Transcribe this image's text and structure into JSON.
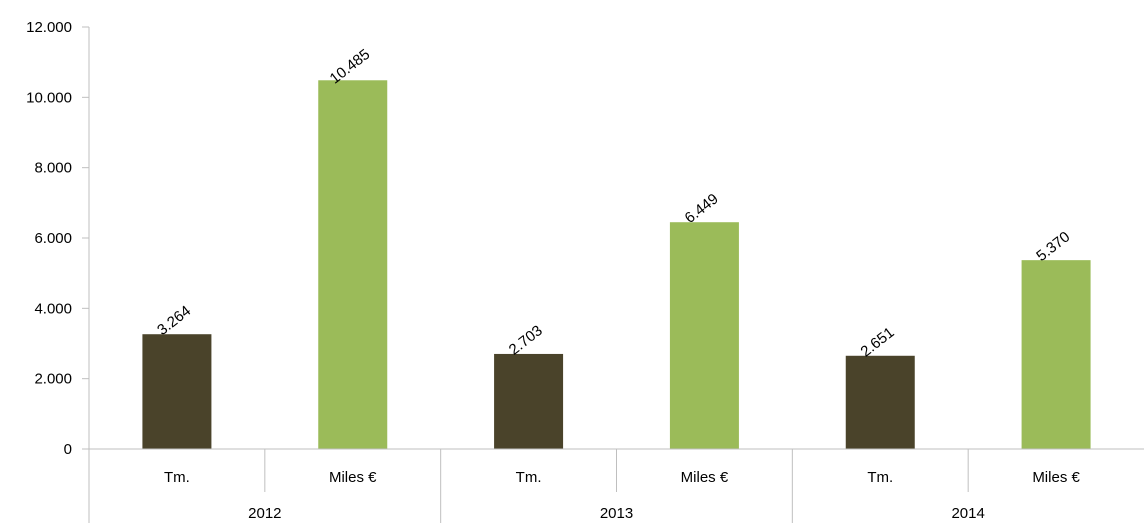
{
  "chart_data": {
    "type": "bar",
    "title": "",
    "xlabel": "",
    "ylabel": "",
    "ylim": [
      0,
      12000
    ],
    "y_ticks": [
      0,
      2000,
      4000,
      6000,
      8000,
      10000,
      12000
    ],
    "y_tick_labels": [
      "0",
      "2.000",
      "4.000",
      "6.000",
      "8.000",
      "10.000",
      "12.000"
    ],
    "grid": false,
    "legend": "none",
    "groups": [
      {
        "label": "2012",
        "bars": [
          {
            "category": "Tm.",
            "value": 3264,
            "label": "3.264",
            "color": "#4a432a"
          },
          {
            "category": "Miles €",
            "value": 10485,
            "label": "10.485",
            "color": "#9bbb59"
          }
        ]
      },
      {
        "label": "2013",
        "bars": [
          {
            "category": "Tm.",
            "value": 2703,
            "label": "2.703",
            "color": "#4a432a"
          },
          {
            "category": "Miles €",
            "value": 6449,
            "label": "6.449",
            "color": "#9bbb59"
          }
        ]
      },
      {
        "label": "2014",
        "bars": [
          {
            "category": "Tm.",
            "value": 2651,
            "label": "2.651",
            "color": "#4a432a"
          },
          {
            "category": "Miles €",
            "value": 5370,
            "label": "5.370",
            "color": "#9bbb59"
          }
        ]
      }
    ]
  }
}
